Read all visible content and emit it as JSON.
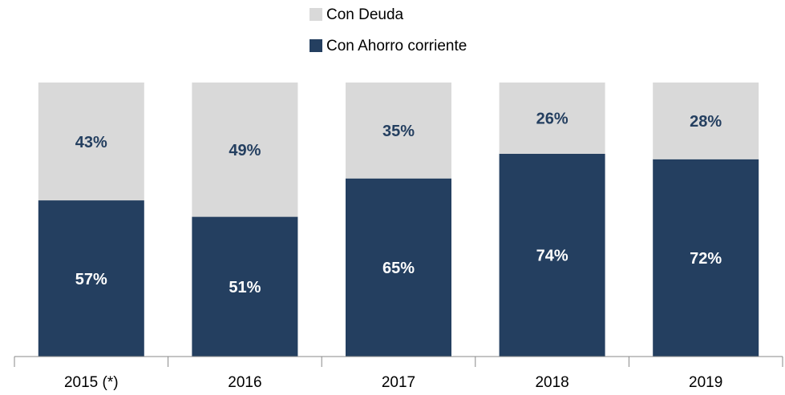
{
  "chart_data": {
    "type": "stacked_bar",
    "categories": [
      "2015 (*)",
      "2016",
      "2017",
      "2018",
      "2019"
    ],
    "series": [
      {
        "name": "Con Ahorro corriente",
        "color": "#243f60",
        "values": [
          57,
          51,
          65,
          74,
          72
        ],
        "value_labels": [
          "57%",
          "51%",
          "65%",
          "74%",
          "72%"
        ]
      },
      {
        "name": "Con Deuda",
        "color": "#d9d9d9",
        "values": [
          43,
          49,
          35,
          26,
          28
        ],
        "value_labels": [
          "43%",
          "49%",
          "35%",
          "26%",
          "28%"
        ]
      }
    ],
    "ylim": [
      0,
      100
    ]
  }
}
